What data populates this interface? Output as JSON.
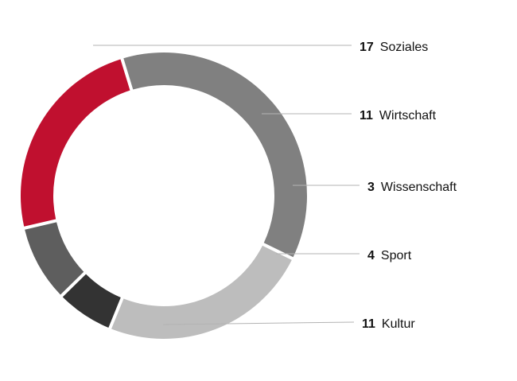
{
  "chart_data": {
    "type": "pie",
    "variant": "donut",
    "categories": [
      "Soziales",
      "Wirtschaft",
      "Wissenschaft",
      "Sport",
      "Kultur"
    ],
    "values": [
      17,
      11,
      3,
      4,
      11
    ],
    "colors": [
      "#808080",
      "#bdbdbd",
      "#333333",
      "#5e5e5e",
      "#c0102f"
    ],
    "title": "",
    "legend": "none",
    "data_labels": "outside-right-with-leader-lines"
  }
}
